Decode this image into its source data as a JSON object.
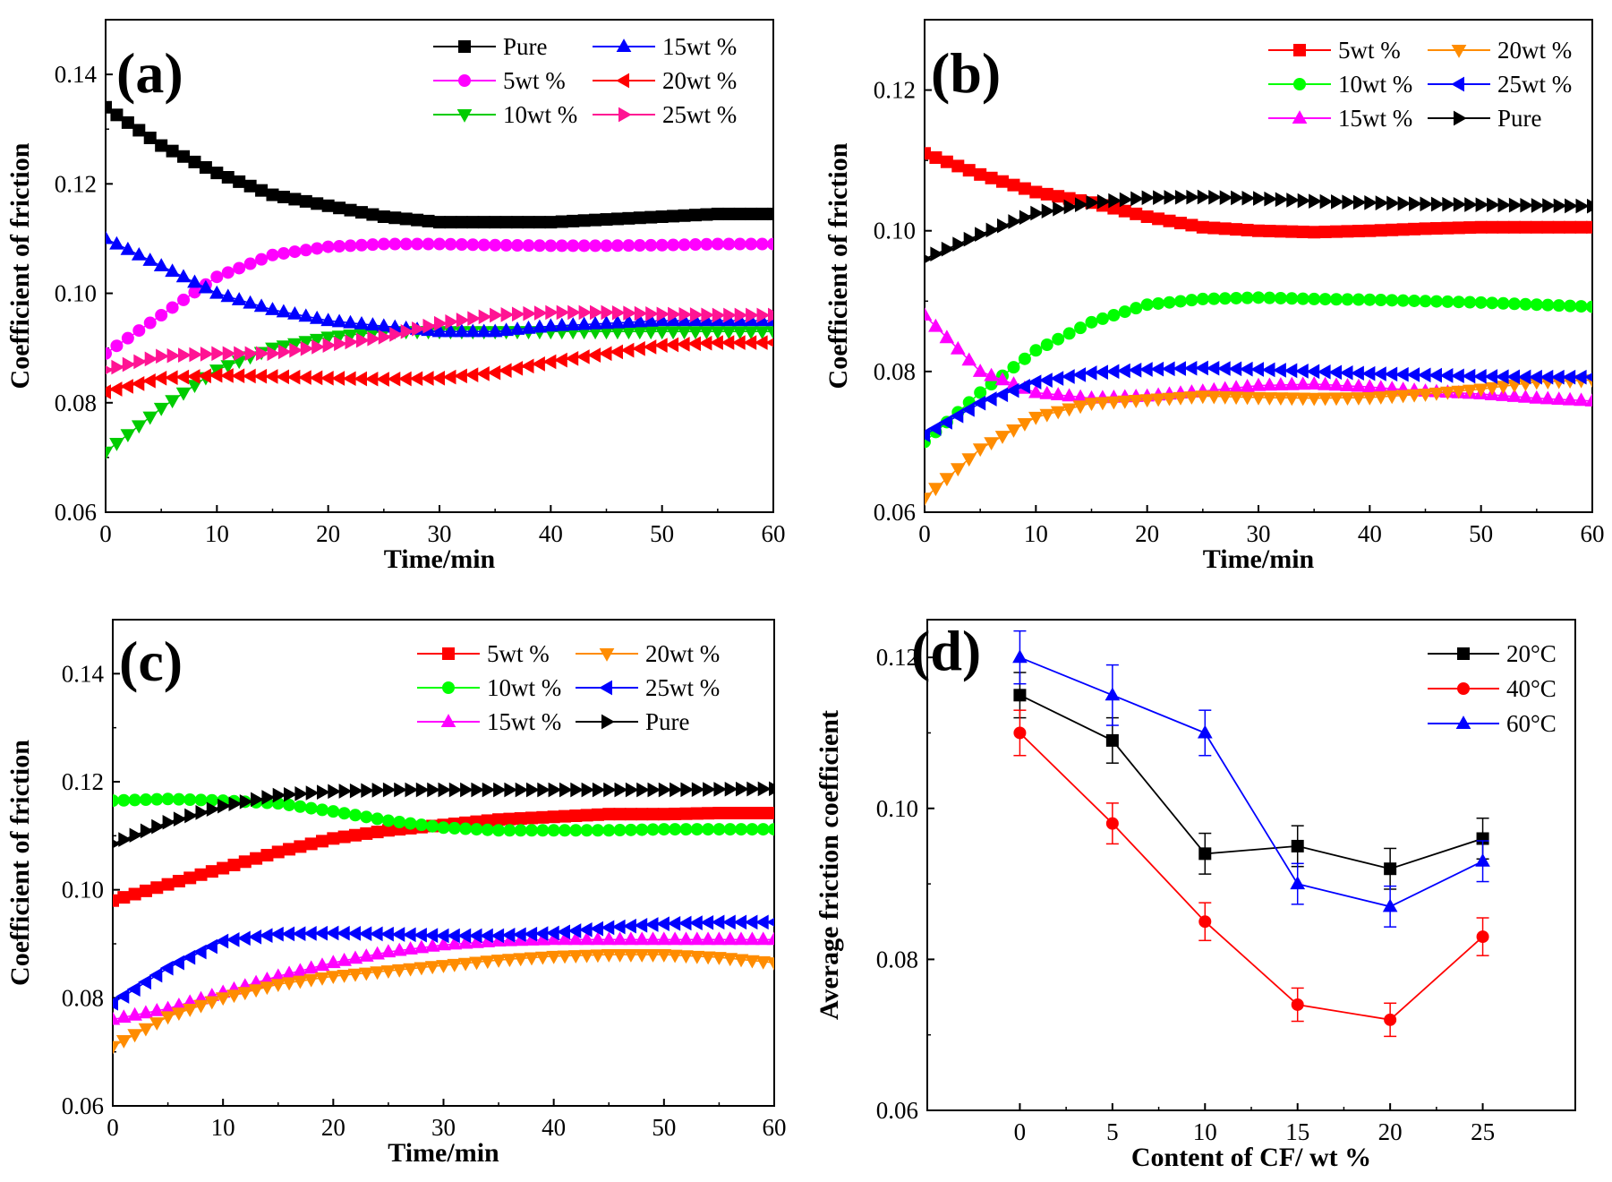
{
  "chart_data": [
    {
      "type": "line",
      "panel_label": "(a)",
      "xlabel": "Time/min",
      "ylabel": "Coefficient of friction",
      "xlim": [
        0,
        60
      ],
      "ylim": [
        0.06,
        0.15
      ],
      "xticks": [
        0,
        10,
        20,
        30,
        40,
        50,
        60
      ],
      "yticks": [
        0.06,
        0.08,
        0.1,
        0.12,
        0.14
      ],
      "xtick_labels": [
        "0",
        "10",
        "20",
        "30",
        "40",
        "50",
        "60"
      ],
      "ytick_labels": [
        "0.06",
        "0.08",
        "0.10",
        "0.12",
        "0.14"
      ],
      "legend_position": "top-right",
      "legend_columns": 2,
      "series": [
        {
          "name": "Pure",
          "color": "#000000",
          "marker": "square",
          "x": [
            0,
            5,
            10,
            15,
            20,
            25,
            30,
            35,
            40,
            45,
            50,
            55,
            60
          ],
          "values": [
            0.134,
            0.127,
            0.122,
            0.118,
            0.116,
            0.114,
            0.113,
            0.113,
            0.113,
            0.1135,
            0.114,
            0.1145,
            0.1145
          ]
        },
        {
          "name": "5wt %",
          "color": "#ff00ff",
          "marker": "circle",
          "x": [
            0,
            5,
            10,
            15,
            20,
            25,
            30,
            35,
            40,
            45,
            50,
            55,
            60
          ],
          "values": [
            0.089,
            0.096,
            0.103,
            0.107,
            0.1085,
            0.109,
            0.109,
            0.1088,
            0.1087,
            0.1087,
            0.1088,
            0.109,
            0.109
          ]
        },
        {
          "name": "10wt %",
          "color": "#00cc00",
          "marker": "triangle-down",
          "x": [
            0,
            5,
            10,
            15,
            20,
            25,
            30,
            35,
            40,
            45,
            50,
            55,
            60
          ],
          "values": [
            0.071,
            0.079,
            0.086,
            0.09,
            0.092,
            0.093,
            0.093,
            0.093,
            0.093,
            0.093,
            0.093,
            0.093,
            0.093
          ]
        },
        {
          "name": "15wt %",
          "color": "#0000ff",
          "marker": "triangle-up",
          "x": [
            0,
            5,
            10,
            15,
            20,
            25,
            30,
            35,
            40,
            45,
            50,
            55,
            60
          ],
          "values": [
            0.11,
            0.105,
            0.1,
            0.097,
            0.095,
            0.094,
            0.093,
            0.093,
            0.094,
            0.0945,
            0.095,
            0.095,
            0.095
          ]
        },
        {
          "name": "20wt %",
          "color": "#ff0000",
          "marker": "triangle-left",
          "x": [
            0,
            5,
            10,
            15,
            20,
            25,
            30,
            35,
            40,
            45,
            50,
            55,
            60
          ],
          "values": [
            0.082,
            0.0845,
            0.085,
            0.0848,
            0.0845,
            0.0843,
            0.0845,
            0.0855,
            0.0875,
            0.089,
            0.0905,
            0.091,
            0.091
          ]
        },
        {
          "name": "25wt %",
          "color": "#ff1493",
          "marker": "triangle-right",
          "x": [
            0,
            5,
            10,
            15,
            20,
            25,
            30,
            35,
            40,
            45,
            50,
            55,
            60
          ],
          "values": [
            0.086,
            0.0885,
            0.089,
            0.089,
            0.0905,
            0.092,
            0.0945,
            0.096,
            0.0965,
            0.0965,
            0.0962,
            0.096,
            0.096
          ]
        }
      ]
    },
    {
      "type": "line",
      "panel_label": "(b)",
      "xlabel": "Time/min",
      "ylabel": "Coefficient of friction",
      "xlim": [
        0,
        60
      ],
      "ylim": [
        0.06,
        0.13
      ],
      "xticks": [
        0,
        10,
        20,
        30,
        40,
        50,
        60
      ],
      "yticks": [
        0.06,
        0.08,
        0.1,
        0.12
      ],
      "xtick_labels": [
        "0",
        "10",
        "20",
        "30",
        "40",
        "50",
        "60"
      ],
      "ytick_labels": [
        "0.06",
        "0.08",
        "0.10",
        "0.12"
      ],
      "legend_position": "top-right",
      "legend_columns": 2,
      "series": [
        {
          "name": "5wt %",
          "color": "#ff0000",
          "marker": "square",
          "x": [
            0,
            5,
            10,
            15,
            20,
            25,
            30,
            35,
            40,
            45,
            50,
            55,
            60
          ],
          "values": [
            0.111,
            0.108,
            0.1055,
            0.104,
            0.102,
            0.1005,
            0.1,
            0.0998,
            0.1,
            0.1003,
            0.1005,
            0.1005,
            0.1005
          ]
        },
        {
          "name": "10wt %",
          "color": "#00ff00",
          "marker": "circle",
          "x": [
            0,
            5,
            10,
            15,
            20,
            25,
            30,
            35,
            40,
            45,
            50,
            55,
            60
          ],
          "values": [
            0.07,
            0.077,
            0.083,
            0.087,
            0.0895,
            0.0903,
            0.0905,
            0.0903,
            0.0902,
            0.09,
            0.0898,
            0.0895,
            0.0892
          ]
        },
        {
          "name": "15wt %",
          "color": "#ff00ff",
          "marker": "triangle-up",
          "x": [
            0,
            5,
            10,
            15,
            20,
            25,
            30,
            35,
            40,
            45,
            50,
            55,
            60
          ],
          "values": [
            0.088,
            0.08,
            0.077,
            0.0762,
            0.0765,
            0.0772,
            0.078,
            0.0782,
            0.0778,
            0.0772,
            0.0768,
            0.0762,
            0.0758
          ]
        },
        {
          "name": "20wt %",
          "color": "#ff8c00",
          "marker": "triangle-down",
          "x": [
            0,
            5,
            10,
            15,
            20,
            25,
            30,
            35,
            40,
            45,
            50,
            55,
            60
          ],
          "values": [
            0.062,
            0.069,
            0.0735,
            0.0755,
            0.076,
            0.0765,
            0.0763,
            0.0762,
            0.0763,
            0.0768,
            0.0775,
            0.0785,
            0.0788
          ]
        },
        {
          "name": "25wt %",
          "color": "#0000ff",
          "marker": "triangle-left",
          "x": [
            0,
            5,
            10,
            15,
            20,
            25,
            30,
            35,
            40,
            45,
            50,
            55,
            60
          ],
          "values": [
            0.071,
            0.0755,
            0.0785,
            0.0798,
            0.0803,
            0.0805,
            0.0803,
            0.08,
            0.0797,
            0.0795,
            0.0793,
            0.0792,
            0.0792
          ]
        },
        {
          "name": "Pure",
          "color": "#000000",
          "marker": "triangle-right",
          "x": [
            0,
            5,
            10,
            15,
            20,
            25,
            30,
            35,
            40,
            45,
            50,
            55,
            60
          ],
          "values": [
            0.096,
            0.0995,
            0.1025,
            0.104,
            0.1047,
            0.1048,
            0.1046,
            0.1042,
            0.104,
            0.1038,
            0.1037,
            0.1036,
            0.1035
          ]
        }
      ]
    },
    {
      "type": "line",
      "panel_label": "(c)",
      "xlabel": "Time/min",
      "ylabel": "Coefficient of friction",
      "xlim": [
        0,
        60
      ],
      "ylim": [
        0.06,
        0.15
      ],
      "xticks": [
        0,
        10,
        20,
        30,
        40,
        50,
        60
      ],
      "yticks": [
        0.06,
        0.08,
        0.1,
        0.12,
        0.14
      ],
      "xtick_labels": [
        "0",
        "10",
        "20",
        "30",
        "40",
        "50",
        "60"
      ],
      "ytick_labels": [
        "0.06",
        "0.08",
        "0.10",
        "0.12",
        "0.14"
      ],
      "legend_position": "top-right",
      "legend_columns": 2,
      "series": [
        {
          "name": "5wt %",
          "color": "#ff0000",
          "marker": "square",
          "x": [
            0,
            5,
            10,
            15,
            20,
            25,
            30,
            35,
            40,
            45,
            50,
            55,
            60
          ],
          "values": [
            0.098,
            0.101,
            0.104,
            0.107,
            0.1095,
            0.111,
            0.112,
            0.113,
            0.1135,
            0.114,
            0.114,
            0.1142,
            0.1142
          ]
        },
        {
          "name": "10wt %",
          "color": "#00ff00",
          "marker": "circle",
          "x": [
            0,
            5,
            10,
            15,
            20,
            25,
            30,
            35,
            40,
            45,
            50,
            55,
            60
          ],
          "values": [
            0.1165,
            0.1168,
            0.1165,
            0.116,
            0.1145,
            0.1128,
            0.1115,
            0.111,
            0.111,
            0.111,
            0.1112,
            0.1112,
            0.1112
          ]
        },
        {
          "name": "15wt %",
          "color": "#ff00ff",
          "marker": "triangle-up",
          "x": [
            0,
            5,
            10,
            15,
            20,
            25,
            30,
            35,
            40,
            45,
            50,
            55,
            60
          ],
          "values": [
            0.076,
            0.078,
            0.081,
            0.084,
            0.0865,
            0.0885,
            0.0898,
            0.0905,
            0.0908,
            0.0908,
            0.0908,
            0.0908,
            0.0908
          ]
        },
        {
          "name": "20wt %",
          "color": "#ff8c00",
          "marker": "triangle-down",
          "x": [
            0,
            5,
            10,
            15,
            20,
            25,
            30,
            35,
            40,
            45,
            50,
            55,
            60
          ],
          "values": [
            0.071,
            0.0765,
            0.08,
            0.0825,
            0.084,
            0.085,
            0.086,
            0.087,
            0.0877,
            0.088,
            0.088,
            0.0875,
            0.0865
          ]
        },
        {
          "name": "25wt %",
          "color": "#0000ff",
          "marker": "triangle-left",
          "x": [
            0,
            5,
            10,
            15,
            20,
            25,
            30,
            35,
            40,
            45,
            50,
            55,
            60
          ],
          "values": [
            0.079,
            0.0855,
            0.0905,
            0.0918,
            0.092,
            0.0918,
            0.0915,
            0.0915,
            0.092,
            0.093,
            0.0937,
            0.094,
            0.094
          ]
        },
        {
          "name": "Pure",
          "color": "#000000",
          "marker": "triangle-right",
          "x": [
            0,
            5,
            10,
            15,
            20,
            25,
            30,
            35,
            40,
            45,
            50,
            55,
            60
          ],
          "values": [
            0.1085,
            0.1125,
            0.1155,
            0.1175,
            0.1182,
            0.1185,
            0.1185,
            0.1185,
            0.1185,
            0.1185,
            0.1185,
            0.1186,
            0.1187
          ]
        }
      ]
    },
    {
      "type": "line",
      "panel_label": "(d)",
      "xlabel": "Content of CF/ wt %",
      "ylabel": "Average friction coefficient",
      "xlim": [
        -5,
        30
      ],
      "ylim": [
        0.06,
        0.125
      ],
      "xticks": [
        0,
        5,
        10,
        15,
        20,
        25
      ],
      "yticks": [
        0.06,
        0.08,
        0.1,
        0.12
      ],
      "xtick_labels": [
        "0",
        "5",
        "10",
        "15",
        "20",
        "25"
      ],
      "ytick_labels": [
        "0.06",
        "0.08",
        "0.10",
        "0.12"
      ],
      "legend_position": "top-right",
      "legend_columns": 1,
      "x": [
        0,
        5,
        10,
        15,
        20,
        25
      ],
      "series": [
        {
          "name": "20°C",
          "color": "#000000",
          "marker": "square",
          "values": [
            0.115,
            0.109,
            0.094,
            0.095,
            0.092,
            0.096
          ],
          "error": [
            0.003,
            0.003,
            0.0027,
            0.0027,
            0.0027,
            0.0027
          ]
        },
        {
          "name": "40°C",
          "color": "#ff0000",
          "marker": "circle",
          "values": [
            0.11,
            0.098,
            0.085,
            0.074,
            0.072,
            0.083
          ],
          "error": [
            0.003,
            0.0027,
            0.0025,
            0.0022,
            0.0022,
            0.0025
          ]
        },
        {
          "name": "60°C",
          "color": "#0000ff",
          "marker": "triangle-up",
          "values": [
            0.12,
            0.115,
            0.11,
            0.09,
            0.087,
            0.093
          ],
          "error": [
            0.0035,
            0.004,
            0.003,
            0.0027,
            0.0027,
            0.0027
          ]
        }
      ]
    }
  ]
}
